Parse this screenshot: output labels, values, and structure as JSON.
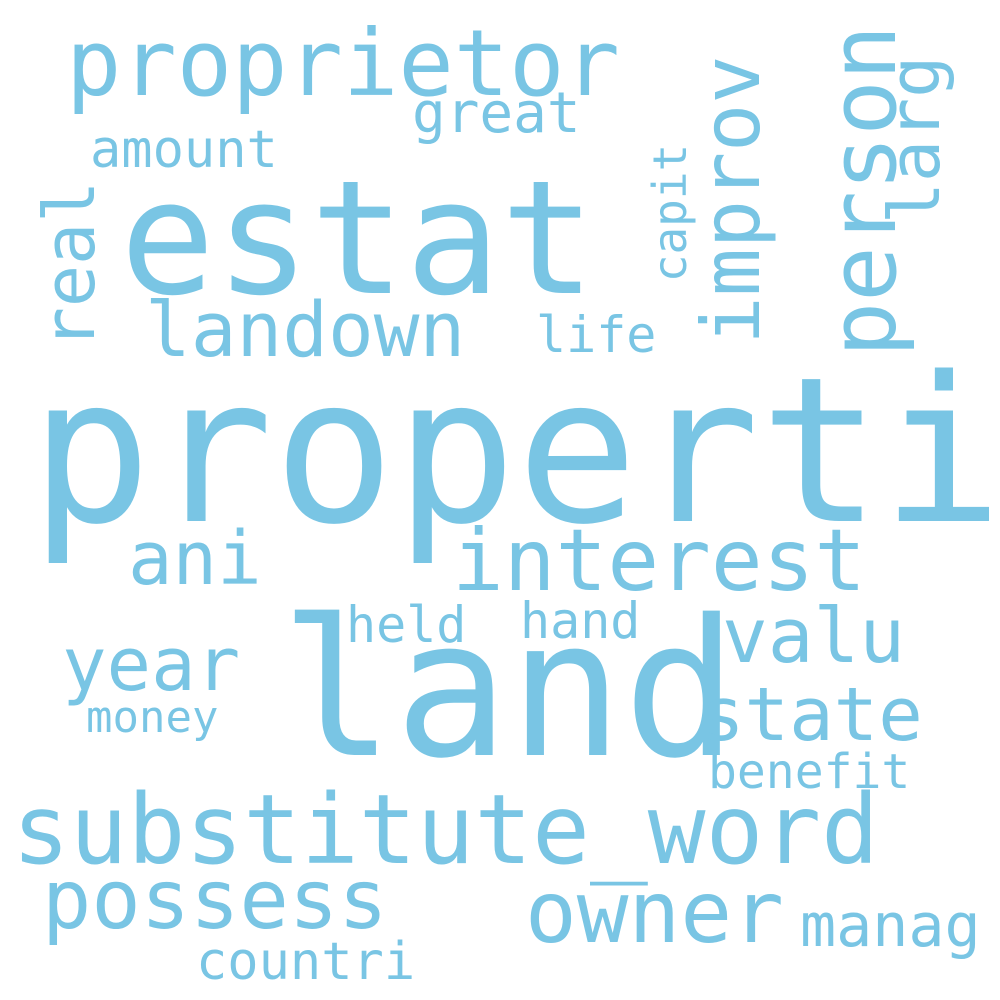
{
  "cloud": {
    "color": "#79c5e4",
    "background": "#ffffff",
    "words": {
      "properti": "properti",
      "estat": "estat",
      "land": "land",
      "substitute_word": "substitute_word",
      "proprietor": "proprietor",
      "interest": "interest",
      "possess": "possess",
      "owner": "owner",
      "landown": "landown",
      "person": "person",
      "improv": "improv",
      "valu": "valu",
      "state": "state",
      "ani": "ani",
      "year": "year",
      "larg": "larg",
      "real": "real",
      "great": "great",
      "amount": "amount",
      "capit": "capit",
      "life": "life",
      "held": "held",
      "hand": "hand",
      "money": "money",
      "benefit": "benefit",
      "countri": "countri",
      "manag": "manag"
    }
  }
}
